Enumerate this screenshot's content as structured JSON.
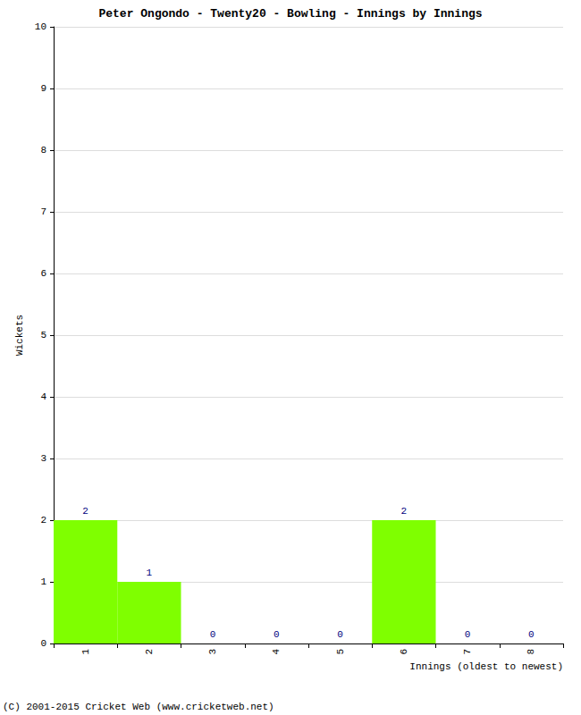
{
  "chart_data": {
    "type": "bar",
    "title": "Peter Ongondo - Twenty20 - Bowling - Innings by Innings",
    "xlabel": "Innings (oldest to newest)",
    "ylabel": "Wickets",
    "categories": [
      "1",
      "2",
      "3",
      "4",
      "5",
      "6",
      "7",
      "8"
    ],
    "values": [
      2,
      1,
      0,
      0,
      0,
      2,
      0,
      0
    ],
    "color": "#7fff00",
    "ylim": [
      0,
      10
    ],
    "yticks": [
      0,
      1,
      2,
      3,
      4,
      5,
      6,
      7,
      8,
      9,
      10
    ],
    "grid": true,
    "data_labels": true,
    "annotations": [
      "(C) 2001-2015 Cricket Web (www.cricketweb.net)"
    ]
  }
}
